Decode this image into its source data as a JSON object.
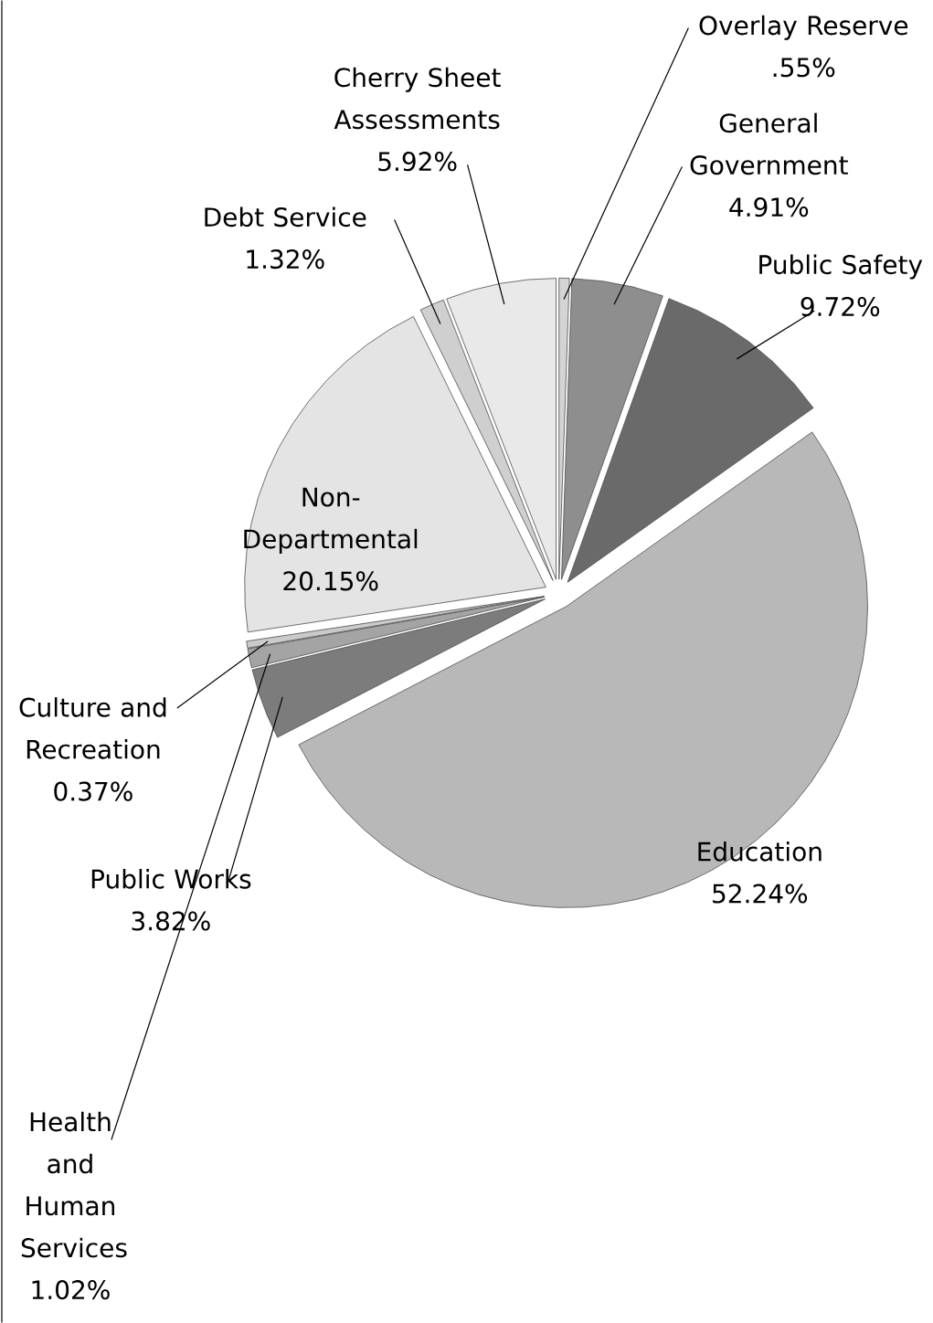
{
  "chart_data": {
    "type": "pie",
    "categories": [
      "Overlay Reserve",
      "General Government",
      "Public Safety",
      "Education",
      "Public Works",
      "Health and Human Services",
      "Culture and Recreation",
      "Non-Departmental",
      "Debt Service",
      "Cherry Sheet Assessments"
    ],
    "values": [
      0.55,
      4.91,
      9.72,
      52.24,
      3.82,
      1.02,
      0.37,
      20.15,
      1.32,
      5.92
    ],
    "value_labels": [
      ".55%",
      "4.91%",
      "9.72%",
      "52.24%",
      "3.82%",
      "1.02%",
      "0.37%",
      "20.15%",
      "1.32%",
      "5.92%"
    ],
    "colors": [
      "#d4d4d4",
      "#8e8e8e",
      "#6a6a6a",
      "#b8b8b8",
      "#7c7c7c",
      "#a4a4a4",
      "#cacaca",
      "#e4e4e4",
      "#cfcfcf",
      "#e9e9e9"
    ]
  }
}
